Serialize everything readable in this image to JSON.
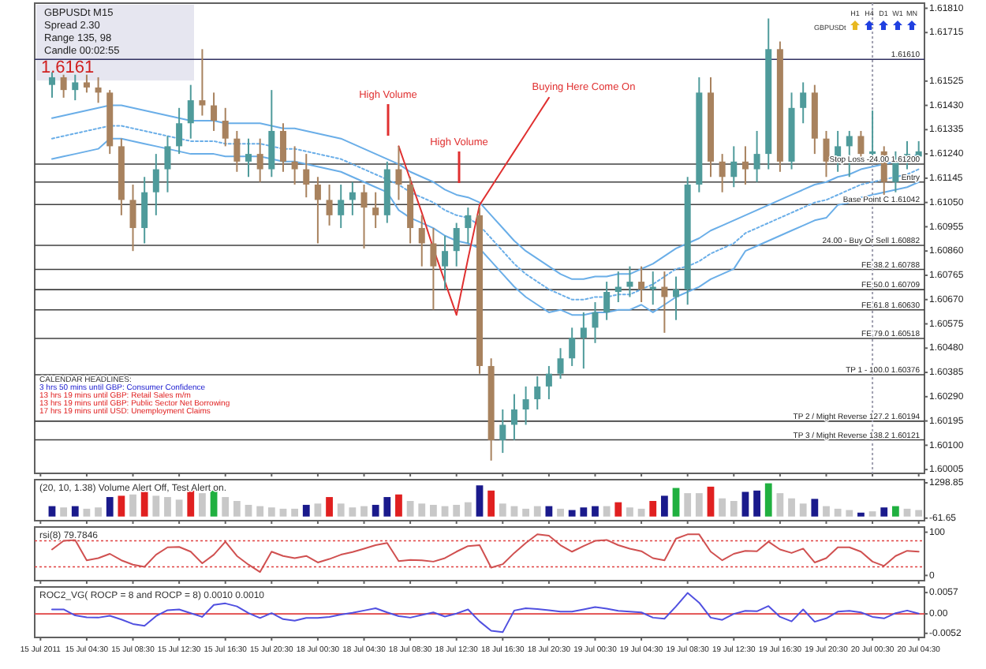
{
  "chart_data": [
    {
      "type": "candlestick",
      "tick_labels": "y",
      "categories": [
        "15 Jul 2011",
        null,
        null,
        null,
        "15 Jul 04:30",
        null,
        null,
        null,
        "15 Jul 08:30",
        null,
        null,
        null,
        "15 Jul 12:30",
        null,
        null,
        null,
        "15 Jul 16:30",
        null,
        null,
        null,
        "15 Jul 20:30",
        null,
        null,
        null,
        "18 Jul 00:30",
        null,
        null,
        null,
        "18 Jul 04:30",
        null,
        null,
        null,
        "18 Jul 08:30",
        null,
        null,
        null,
        "18 Jul 12:30",
        null,
        null,
        null,
        "18 Jul 16:30",
        null,
        null,
        null,
        "18 Jul 20:30",
        null,
        null,
        null,
        "19 Jul 00:30",
        null,
        null,
        null,
        "19 Jul 04:30",
        null,
        null,
        null,
        "19 Jul 08:30",
        null,
        null,
        null,
        "19 Jul 12:30",
        null,
        null,
        null,
        "19 Jul 16:30",
        null,
        null,
        null,
        "19 Jul 20:30",
        null,
        null,
        null,
        "20 Jul 00:30",
        null,
        null,
        null,
        "20 Jul 04:30"
      ],
      "ylim": [
        1.5999,
        1.6183
      ],
      "yticks": [
        1.60005,
        {
          "value": 1.601,
          "label": "1.60100"
        },
        1.60195,
        {
          "value": 1.6029,
          "label": "1.60290"
        },
        1.60385,
        {
          "value": 1.6048,
          "label": "1.60480"
        },
        1.60575,
        {
          "value": 1.6067,
          "label": "1.60670"
        },
        1.60765,
        {
          "value": 1.6086,
          "label": "1.60860"
        },
        1.60955,
        {
          "value": 1.6105,
          "label": "1.61050"
        },
        1.61145,
        {
          "value": 1.6124,
          "label": "1.61240"
        },
        1.61335,
        {
          "value": 1.6143,
          "label": "1.61430"
        },
        1.61525,
        1.61715,
        {
          "value": 1.6181,
          "label": "1.61810"
        }
      ],
      "ohlc": [
        null,
        [
          1.6151,
          1.6156,
          1.6146,
          1.6154
        ],
        [
          1.6154,
          1.6155,
          1.6146,
          1.6149
        ],
        [
          1.6149,
          1.6155,
          1.6145,
          1.6152
        ],
        [
          1.6152,
          1.6155,
          1.6148,
          1.615
        ],
        [
          1.615,
          1.6154,
          1.6144,
          1.6148
        ],
        [
          1.6148,
          1.6149,
          1.6124,
          1.6127
        ],
        [
          1.6127,
          1.613,
          1.61,
          1.6106
        ],
        [
          1.6106,
          1.6112,
          1.6086,
          1.6095
        ],
        [
          1.6095,
          1.6115,
          1.6089,
          1.6109
        ],
        [
          1.6109,
          1.6124,
          1.61,
          1.6118
        ],
        [
          1.6118,
          1.6131,
          1.6109,
          1.6127
        ],
        [
          1.6127,
          1.6142,
          1.6124,
          1.6136
        ],
        [
          1.6136,
          1.6151,
          1.613,
          1.6145
        ],
        [
          1.6145,
          1.6165,
          1.6139,
          1.6143
        ],
        [
          1.6143,
          1.6148,
          1.6133,
          1.6137
        ],
        [
          1.6137,
          1.6142,
          1.6127,
          1.613
        ],
        [
          1.613,
          1.6133,
          1.6117,
          1.6121
        ],
        [
          1.6121,
          1.613,
          1.6115,
          1.6124
        ],
        [
          1.6124,
          1.613,
          1.6113,
          1.6118
        ],
        [
          1.6118,
          1.6149,
          1.6115,
          1.6133
        ],
        [
          1.6133,
          1.6136,
          1.6117,
          1.6121
        ],
        [
          1.6121,
          1.6127,
          1.6112,
          1.6118
        ],
        [
          1.6118,
          1.6124,
          1.6107,
          1.6112
        ],
        [
          1.6112,
          1.6115,
          1.6089,
          1.6106
        ],
        [
          1.6106,
          1.6112,
          1.6096,
          1.61
        ],
        [
          1.61,
          1.6112,
          1.6095,
          1.6106
        ],
        [
          1.6106,
          1.6113,
          1.61,
          1.6109
        ],
        [
          1.6109,
          1.6112,
          1.6087,
          1.6103
        ],
        [
          1.6103,
          1.6109,
          1.6095,
          1.61
        ],
        [
          1.61,
          1.6121,
          1.6097,
          1.6118
        ],
        [
          1.6118,
          1.6127,
          1.6106,
          1.6112
        ],
        [
          1.6112,
          1.6115,
          1.6089,
          1.6095
        ],
        [
          1.6095,
          1.61,
          1.608,
          1.6089
        ],
        [
          1.6089,
          1.6095,
          1.6063,
          1.608
        ],
        [
          1.608,
          1.6092,
          1.6071,
          1.6086
        ],
        [
          1.6086,
          1.6097,
          1.608,
          1.6095
        ],
        [
          1.6095,
          1.6103,
          1.6089,
          1.61
        ],
        [
          1.61,
          1.6103,
          1.6038,
          1.6041
        ],
        [
          1.6041,
          1.6044,
          1.6004,
          1.6012
        ],
        [
          1.6012,
          1.6024,
          1.6007,
          1.6018
        ],
        [
          1.6018,
          1.603,
          1.6012,
          1.6024
        ],
        [
          1.6024,
          1.6033,
          1.6018,
          1.6028
        ],
        [
          1.6028,
          1.6037,
          1.6024,
          1.6033
        ],
        [
          1.6033,
          1.6041,
          1.6028,
          1.6038
        ],
        [
          1.6038,
          1.6048,
          1.6036,
          1.6044
        ],
        [
          1.6044,
          1.6056,
          1.6041,
          1.6052
        ],
        [
          1.6052,
          1.6062,
          1.604,
          1.6056
        ],
        [
          1.6056,
          1.6066,
          1.605,
          1.6062
        ],
        [
          1.6062,
          1.6074,
          1.6059,
          1.607
        ],
        [
          1.607,
          1.6078,
          1.6066,
          1.6072
        ],
        [
          1.6072,
          1.608,
          1.6068,
          1.6074
        ],
        [
          1.6074,
          1.608,
          1.6066,
          1.6071
        ],
        [
          1.6071,
          1.6078,
          1.6065,
          1.6072
        ],
        [
          1.6072,
          1.6078,
          1.6054,
          1.6068
        ],
        [
          1.6068,
          1.6076,
          1.6059,
          1.6071
        ],
        [
          1.6071,
          1.6115,
          1.6065,
          1.6112
        ],
        [
          1.6112,
          1.6154,
          1.6109,
          1.6148
        ],
        [
          1.6148,
          1.6154,
          1.6115,
          1.6121
        ],
        [
          1.6121,
          1.6124,
          1.6109,
          1.6115
        ],
        [
          1.6115,
          1.6127,
          1.6111,
          1.6121
        ],
        [
          1.6121,
          1.6127,
          1.6112,
          1.6118
        ],
        [
          1.6118,
          1.6133,
          1.6113,
          1.6124
        ],
        [
          1.6124,
          1.6177,
          1.6118,
          1.6165
        ],
        [
          1.6165,
          1.6168,
          1.6117,
          1.6121
        ],
        [
          1.6121,
          1.6148,
          1.6118,
          1.6142
        ],
        [
          1.6142,
          1.6152,
          1.6136,
          1.6148
        ],
        [
          1.6148,
          1.6151,
          1.6124,
          1.613
        ],
        [
          1.613,
          1.6133,
          1.6115,
          1.6121
        ],
        [
          1.6121,
          1.6133,
          1.6117,
          1.6127
        ],
        [
          1.6127,
          1.6133,
          1.6115,
          1.6131
        ],
        [
          1.6131,
          1.6133,
          1.6121,
          1.6124
        ],
        [
          1.6124,
          1.6141,
          1.6121,
          1.6125
        ],
        [
          1.6125,
          1.6127,
          1.6108,
          1.6113
        ],
        [
          1.6113,
          1.6125,
          1.6109,
          1.6121
        ],
        [
          1.6121,
          1.6129,
          1.6118,
          1.6124
        ],
        [
          1.6123,
          1.6129,
          1.6122,
          1.6125
        ]
      ],
      "series": [
        {
          "type": "line",
          "color": "#6aaee8",
          "line_style": "solid",
          "values": [
            null,
            1.6138,
            1.6139,
            1.614,
            1.6141,
            1.6142,
            1.6143,
            1.6143,
            1.6142,
            1.6141,
            1.614,
            1.6139,
            1.6138,
            1.6137,
            1.6137,
            1.6137,
            1.6136,
            1.6136,
            1.6136,
            1.6136,
            1.6135,
            1.6134,
            1.6134,
            1.6133,
            1.6132,
            1.6131,
            1.613,
            1.6128,
            1.6126,
            1.6124,
            1.6122,
            1.612,
            1.6117,
            1.6115,
            1.6113,
            1.611,
            1.6108,
            1.6107,
            1.6105,
            1.61,
            1.6095,
            1.609,
            1.6086,
            1.6083,
            1.608,
            1.6077,
            1.6075,
            1.6075,
            1.6076,
            1.6076,
            1.6077,
            1.6077,
            1.6079,
            1.6081,
            1.6084,
            1.6087,
            1.6089,
            1.6091,
            1.6094,
            1.6096,
            1.6098,
            1.61,
            1.6102,
            1.6104,
            1.6106,
            1.6108,
            1.611,
            1.6112,
            1.6113,
            1.6115,
            1.6116,
            1.6118,
            1.6119,
            1.612,
            1.6121,
            1.6122,
            1.6124
          ]
        },
        {
          "type": "line",
          "color": "#6aaee8",
          "line_style": "dotted",
          "values": [
            null,
            1.613,
            1.6131,
            1.6132,
            1.6133,
            1.6134,
            1.6135,
            1.6135,
            1.6134,
            1.6133,
            1.6132,
            1.6131,
            1.613,
            1.6129,
            1.6129,
            1.6129,
            1.6128,
            1.6128,
            1.6128,
            1.6128,
            1.6127,
            1.6126,
            1.6126,
            1.6125,
            1.6124,
            1.6123,
            1.6122,
            1.612,
            1.6118,
            1.6116,
            1.6114,
            1.6112,
            1.6109,
            1.6107,
            1.6105,
            1.6102,
            1.61,
            1.6099,
            1.6096,
            1.6091,
            1.6086,
            1.6081,
            1.6077,
            1.6074,
            1.6071,
            1.6069,
            1.6067,
            1.6067,
            1.6068,
            1.6068,
            1.6069,
            1.6069,
            1.6071,
            1.6073,
            1.6076,
            1.6079,
            1.608,
            1.6082,
            1.6085,
            1.6087,
            1.6089,
            1.6093,
            1.6095,
            1.6097,
            1.6099,
            1.6101,
            1.6103,
            1.6105,
            1.6106,
            1.6108,
            1.611,
            1.6112,
            1.6113,
            1.6114,
            1.6115,
            1.6116,
            1.6118
          ]
        },
        {
          "type": "line",
          "color": "#6aaee8",
          "line_style": "solid",
          "values": [
            null,
            1.6122,
            1.6123,
            1.6124,
            1.6125,
            1.6126,
            1.613,
            1.613,
            1.6129,
            1.6128,
            1.6127,
            1.6126,
            1.6125,
            1.6124,
            1.6124,
            1.6124,
            1.6123,
            1.6123,
            1.6123,
            1.6123,
            1.6122,
            1.6121,
            1.6121,
            1.612,
            1.6119,
            1.6118,
            1.6117,
            1.6115,
            1.6113,
            1.6111,
            1.6109,
            1.6102,
            1.6099,
            1.6097,
            1.6095,
            1.6092,
            1.609,
            1.6089,
            1.6087,
            1.6082,
            1.6077,
            1.6072,
            1.6068,
            1.6065,
            1.6062,
            1.6063,
            1.6061,
            1.6061,
            1.6062,
            1.6062,
            1.6063,
            1.6063,
            1.6065,
            1.6062,
            1.6065,
            1.6068,
            1.607,
            1.6072,
            1.6075,
            1.6077,
            1.6079,
            1.6086,
            1.6088,
            1.609,
            1.6092,
            1.6094,
            1.6096,
            1.6098,
            1.6099,
            1.6104,
            1.6105,
            1.6107,
            1.6108,
            1.6109,
            1.611,
            1.6111,
            1.6113
          ]
        },
        {
          "type": "line",
          "color": "#e03030",
          "line_style": "solid",
          "values": [
            null,
            null,
            null,
            null,
            null,
            null,
            null,
            null,
            null,
            null,
            null,
            null,
            null,
            null,
            null,
            null,
            null,
            null,
            null,
            null,
            null,
            null,
            null,
            null,
            null,
            null,
            null,
            null,
            null,
            null,
            null,
            1.6127,
            1.6114,
            1.6101,
            1.6087,
            1.6074,
            1.6061,
            1.6083,
            1.6104,
            1.6111,
            1.6118,
            1.6125,
            1.6132,
            1.6139,
            1.6146,
            null,
            null,
            null,
            null,
            null,
            null,
            null,
            null,
            null,
            null,
            null,
            null,
            null,
            null,
            null,
            null,
            null,
            null,
            null,
            null,
            null,
            null,
            null,
            null,
            null,
            null,
            null,
            null,
            null,
            null,
            null,
            null
          ]
        }
      ],
      "ref_lines": [
        {
          "axis": "y",
          "value": 1.6161,
          "label": "1.61610",
          "color": "#303060"
        },
        {
          "axis": "y",
          "value": 1.612,
          "label": "Stop Loss -24.00 1.61200",
          "color": "#404040"
        },
        {
          "axis": "y",
          "value": 1.6113,
          "label": "Entry",
          "color": "#404040"
        },
        {
          "axis": "y",
          "value": 1.61042,
          "label": "Base Point C 1.61042",
          "color": "#404040"
        },
        {
          "axis": "y",
          "value": 1.60882,
          "label": "24.00 - Buy Or Sell 1.60882",
          "color": "#404040"
        },
        {
          "axis": "y",
          "value": 1.60788,
          "label": "FE 38.2 1.60788",
          "color": "#404040"
        },
        {
          "axis": "y",
          "value": 1.60709,
          "label": "FE 50.0 1.60709",
          "color": "#404040"
        },
        {
          "axis": "y",
          "value": 1.6063,
          "label": "FE 61.8 1.60630",
          "color": "#404040"
        },
        {
          "axis": "y",
          "value": 1.60518,
          "label": "FE 79.0 1.60518",
          "color": "#404040"
        },
        {
          "axis": "y",
          "value": 1.60376,
          "label": "TP 1 - 100.0 1.60376",
          "color": "#404040"
        },
        {
          "axis": "y",
          "value": 1.60194,
          "label": "TP 2 / Might Reverse 127.2 1.60194",
          "color": "#404040"
        },
        {
          "axis": "y",
          "value": 1.60121,
          "label": "TP 3 / Might Reverse 138.2 1.60121",
          "color": "#404040"
        },
        {
          "axis": "x",
          "value": "20 Jul 00:30",
          "color": "#a0a0b0",
          "line_style": "dotted"
        }
      ],
      "annotations": [
        "GBPUSDt  M15",
        "Spread 2.30",
        "Range 135, 98",
        "Candle 00:02:55",
        "1.6161",
        "CALENDAR HEADLINES:",
        "3 hrs 50 mins until GBP: Consumer Confidence",
        "13 hrs 19 mins until GBP: Retail Sales m/m",
        "13 hrs 19 mins until GBP: Public Sector Net Borrowing",
        "17 hrs 19 mins until USD: Unemployment Claims",
        "GBPUSDt",
        "H1",
        "H4",
        "D1",
        "W1",
        "MN",
        "High Volume",
        "High Volume",
        "Buying Here Come On"
      ]
    },
    {
      "type": "bar",
      "title": "(20, 10, 1.38)  Volume Alert Off, Test Alert on.",
      "ylim": [
        -160,
        1420
      ],
      "yticks": [
        1298.85,
        -61.65
      ],
      "tick_labels": "y",
      "categories": [
        "15 Jul 2011",
        null,
        null,
        null,
        "15 Jul 04:30",
        null,
        null,
        null,
        "15 Jul 08:30",
        null,
        null,
        null,
        "15 Jul 12:30",
        null,
        null,
        null,
        "15 Jul 16:30",
        null,
        null,
        null,
        "15 Jul 20:30",
        null,
        null,
        null,
        "18 Jul 00:30",
        null,
        null,
        null,
        "18 Jul 04:30",
        null,
        null,
        null,
        "18 Jul 08:30",
        null,
        null,
        null,
        "18 Jul 12:30",
        null,
        null,
        null,
        "18 Jul 16:30",
        null,
        null,
        null,
        "18 Jul 20:30",
        null,
        null,
        null,
        "19 Jul 00:30",
        null,
        null,
        null,
        "19 Jul 04:30",
        null,
        null,
        null,
        "19 Jul 08:30",
        null,
        null,
        null,
        "19 Jul 12:30",
        null,
        null,
        null,
        "19 Jul 16:30",
        null,
        null,
        null,
        "19 Jul 20:30",
        null,
        null,
        null,
        "20 Jul 00:30",
        null,
        null,
        null,
        "20 Jul 04:30"
      ],
      "values": [
        null,
        400,
        350,
        400,
        300,
        350,
        750,
        800,
        850,
        950,
        800,
        750,
        650,
        1000,
        900,
        1000,
        750,
        600,
        450,
        400,
        350,
        300,
        300,
        450,
        500,
        750,
        500,
        350,
        400,
        450,
        750,
        850,
        600,
        500,
        450,
        400,
        450,
        550,
        1200,
        1000,
        500,
        400,
        300,
        400,
        400,
        300,
        250,
        350,
        400,
        400,
        550,
        350,
        300,
        600,
        800,
        1100,
        900,
        900,
        1150,
        700,
        600,
        950,
        1000,
        1280,
        900,
        700,
        500,
        680,
        400,
        300,
        250,
        150,
        200,
        350,
        400,
        300,
        250
      ],
      "colors": [
        null,
        "#1a1a8c",
        "#c8c8c8",
        "#1a1a8c",
        "#c8c8c8",
        "#c8c8c8",
        "#1a1a8c",
        "#e02020",
        "#c8c8c8",
        "#e02020",
        "#c8c8c8",
        "#c8c8c8",
        "#c8c8c8",
        "#e02020",
        "#c8c8c8",
        "#20b040",
        "#c8c8c8",
        "#c8c8c8",
        "#c8c8c8",
        "#c8c8c8",
        "#c8c8c8",
        "#c8c8c8",
        "#c8c8c8",
        "#1a1a8c",
        "#c8c8c8",
        "#e02020",
        "#c8c8c8",
        "#c8c8c8",
        "#c8c8c8",
        "#1a1a8c",
        "#1a1a8c",
        "#e02020",
        "#c8c8c8",
        "#c8c8c8",
        "#c8c8c8",
        "#c8c8c8",
        "#c8c8c8",
        "#c8c8c8",
        "#1a1a8c",
        "#e02020",
        "#c8c8c8",
        "#c8c8c8",
        "#c8c8c8",
        "#c8c8c8",
        "#1a1a8c",
        "#c8c8c8",
        "#1a1a8c",
        "#1a1a8c",
        "#1a1a8c",
        "#c8c8c8",
        "#e02020",
        "#c8c8c8",
        "#c8c8c8",
        "#e02020",
        "#1a1a8c",
        "#20b040",
        "#c8c8c8",
        "#c8c8c8",
        "#e02020",
        "#c8c8c8",
        "#c8c8c8",
        "#1a1a8c",
        "#1a1a8c",
        "#20b040",
        "#c8c8c8",
        "#c8c8c8",
        "#c8c8c8",
        "#1a1a8c",
        "#c8c8c8",
        "#c8c8c8",
        "#c8c8c8",
        "#1a1a8c",
        "#c8c8c8",
        "#1a1a8c",
        "#20b040",
        "#c8c8c8",
        "#c8c8c8"
      ]
    },
    {
      "type": "line",
      "title": "rsi(8) 79.7846",
      "color": "#d05050",
      "ylim": [
        -12,
        112
      ],
      "yticks": [
        100,
        0
      ],
      "tick_labels": "y",
      "categories": [
        "15 Jul 2011",
        null,
        null,
        null,
        "15 Jul 04:30",
        null,
        null,
        null,
        "15 Jul 08:30",
        null,
        null,
        null,
        "15 Jul 12:30",
        null,
        null,
        null,
        "15 Jul 16:30",
        null,
        null,
        null,
        "15 Jul 20:30",
        null,
        null,
        null,
        "18 Jul 00:30",
        null,
        null,
        null,
        "18 Jul 04:30",
        null,
        null,
        null,
        "18 Jul 08:30",
        null,
        null,
        null,
        "18 Jul 12:30",
        null,
        null,
        null,
        "18 Jul 16:30",
        null,
        null,
        null,
        "18 Jul 20:30",
        null,
        null,
        null,
        "19 Jul 00:30",
        null,
        null,
        null,
        "19 Jul 04:30",
        null,
        null,
        null,
        "19 Jul 08:30",
        null,
        null,
        null,
        "19 Jul 12:30",
        null,
        null,
        null,
        "19 Jul 16:30",
        null,
        null,
        null,
        "19 Jul 20:30",
        null,
        null,
        null,
        "20 Jul 00:30",
        null,
        null,
        null,
        "20 Jul 04:30"
      ],
      "values": [
        null,
        60,
        80,
        82,
        35,
        40,
        50,
        35,
        25,
        20,
        48,
        65,
        66,
        55,
        28,
        48,
        78,
        45,
        25,
        8,
        55,
        45,
        40,
        45,
        30,
        38,
        48,
        54,
        62,
        70,
        75,
        33,
        36,
        35,
        32,
        40,
        55,
        68,
        70,
        18,
        26,
        52,
        75,
        95,
        92,
        70,
        55,
        68,
        80,
        82,
        70,
        62,
        56,
        40,
        35,
        85,
        95,
        95,
        55,
        35,
        50,
        57,
        56,
        78,
        60,
        52,
        62,
        30,
        40,
        65,
        65,
        55,
        32,
        22,
        45,
        57,
        55
      ],
      "ref_lines": [
        {
          "axis": "y",
          "value": 80,
          "color": "#e04040",
          "line_style": "dotted"
        },
        {
          "axis": "y",
          "value": 20,
          "color": "#e04040",
          "line_style": "dotted"
        }
      ]
    },
    {
      "type": "line",
      "title": "ROC2_VG( ROCP = 8 and ROCP = 8) 0.0010 0.0010",
      "color": "#5050e0",
      "ylim": [
        -0.0063,
        0.0072
      ],
      "yticks": [
        0.0057,
        {
          "value": 0,
          "label": "0.00"
        },
        -0.0052
      ],
      "categories": [
        "15 Jul 2011",
        null,
        null,
        null,
        "15 Jul 04:30",
        null,
        null,
        null,
        "15 Jul 08:30",
        null,
        null,
        null,
        "15 Jul 12:30",
        null,
        null,
        null,
        "15 Jul 16:30",
        null,
        null,
        null,
        "15 Jul 20:30",
        null,
        null,
        null,
        "18 Jul 00:30",
        null,
        null,
        null,
        "18 Jul 04:30",
        null,
        null,
        null,
        "18 Jul 08:30",
        null,
        null,
        null,
        "18 Jul 12:30",
        null,
        null,
        null,
        "18 Jul 16:30",
        null,
        null,
        null,
        "18 Jul 20:30",
        null,
        null,
        null,
        "19 Jul 00:30",
        null,
        null,
        null,
        "19 Jul 04:30",
        null,
        null,
        null,
        "19 Jul 08:30",
        null,
        null,
        null,
        "19 Jul 12:30",
        null,
        null,
        null,
        "19 Jul 16:30",
        null,
        null,
        null,
        "19 Jul 20:30",
        null,
        null,
        null,
        "20 Jul 00:30",
        null,
        null,
        null,
        "20 Jul 04:30"
      ],
      "values": [
        null,
        0.0012,
        0.0012,
        -0.0004,
        -0.0009,
        -0.001,
        -0.0005,
        -0.0015,
        -0.0027,
        -0.0032,
        -0.0006,
        0.001,
        0.0012,
        0.0002,
        -0.0008,
        0.0024,
        0.0028,
        0.002,
        0.0002,
        -0.0011,
        0.0002,
        -0.0014,
        -0.0018,
        -0.0011,
        -0.0011,
        -0.0008,
        -0.0002,
        0.0003,
        0.0009,
        0.0015,
        0.0004,
        -0.0006,
        -0.001,
        -0.0003,
        0.0004,
        -0.0007,
        0.0001,
        0.0012,
        -0.002,
        -0.0045,
        -0.0049,
        0.0009,
        0.0015,
        0.0013,
        0.001,
        0.0006,
        0.0006,
        0.0012,
        0.0018,
        0.0014,
        0.0008,
        0.0006,
        0.0004,
        -0.001,
        -0.0013,
        0.002,
        0.0056,
        0.003,
        -0.001,
        -0.0016,
        0,
        0.0008,
        0.0007,
        0.0021,
        -0.0008,
        -0.002,
        0.0012,
        -0.0021,
        -0.0012,
        0.0006,
        0.0008,
        0.0004,
        -0.0008,
        -0.0012,
        0.0002,
        0.0009,
        0.0001
      ],
      "ref_lines": [
        {
          "axis": "y",
          "value": 0,
          "color": "#e04040",
          "line_style": "solid"
        }
      ]
    }
  ]
}
